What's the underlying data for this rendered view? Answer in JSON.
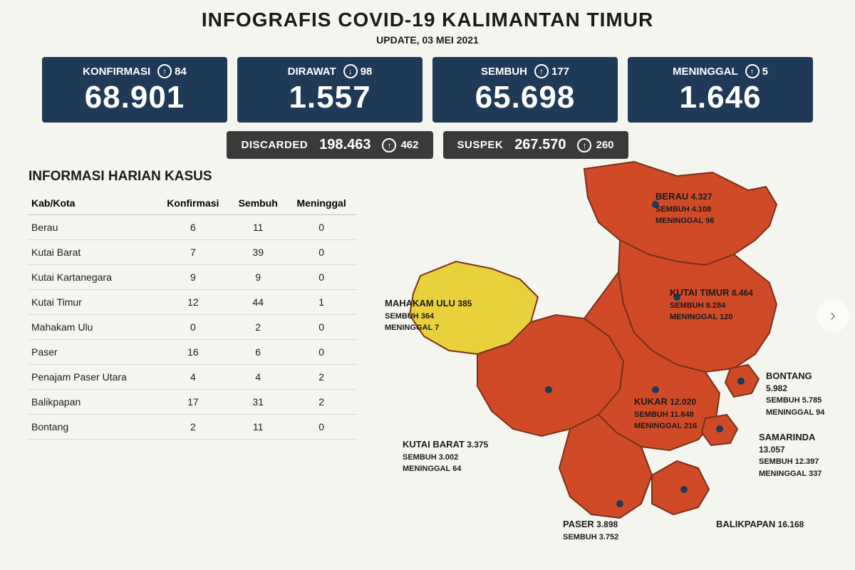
{
  "header": {
    "title": "INFOGRAFIS COVID-19 KALIMANTAN TIMUR",
    "subtitle": "UPDATE, 03 MEI 2021"
  },
  "stats": [
    {
      "label": "KONFIRMASI",
      "delta": "84",
      "dir": "up",
      "value": "68.901"
    },
    {
      "label": "DIRAWAT",
      "delta": "98",
      "dir": "down",
      "value": "1.557"
    },
    {
      "label": "SEMBUH",
      "delta": "177",
      "dir": "up",
      "value": "65.698"
    },
    {
      "label": "MENINGGAL",
      "delta": "5",
      "dir": "up",
      "value": "1.646"
    }
  ],
  "substats": [
    {
      "label": "DISCARDED",
      "value": "198.463",
      "delta": "462",
      "dir": "up"
    },
    {
      "label": "SUSPEK",
      "value": "267.570",
      "delta": "260",
      "dir": "up"
    }
  ],
  "table": {
    "title": "INFORMASI HARIAN KASUS",
    "columns": [
      "Kab/Kota",
      "Konfirmasi",
      "Sembuh",
      "Meninggal"
    ],
    "rows": [
      [
        "Berau",
        "6",
        "11",
        "0"
      ],
      [
        "Kutai Barat",
        "7",
        "39",
        "0"
      ],
      [
        "Kutai Kartanegara",
        "9",
        "9",
        "0"
      ],
      [
        "Kutai Timur",
        "12",
        "44",
        "1"
      ],
      [
        "Mahakam Ulu",
        "0",
        "2",
        "0"
      ],
      [
        "Paser",
        "16",
        "6",
        "0"
      ],
      [
        "Penajam Paser Utara",
        "4",
        "4",
        "2"
      ],
      [
        "Balikpapan",
        "17",
        "31",
        "2"
      ],
      [
        "Bontang",
        "2",
        "11",
        "0"
      ]
    ]
  },
  "map": {
    "colors": {
      "red": "#d04a28",
      "yellow": "#e8d13a",
      "border": "#7a3018",
      "dot": "#1e3a56"
    },
    "regions": [
      {
        "name": "BERAU",
        "value": "4.327",
        "sembuh": "SEMBUH 4.108",
        "meninggal": "MENINGGAL 96"
      },
      {
        "name": "KUTAI TIMUR",
        "value": "8.464",
        "sembuh": "SEMBUH 8.284",
        "meninggal": "MENINGGAL 120"
      },
      {
        "name": "MAHAKAM ULU",
        "value": "385",
        "sembuh": "SEMBUH 364",
        "meninggal": "MENINGGAL 7"
      },
      {
        "name": "BONTANG",
        "value": "5.982",
        "sembuh": "SEMBUH 5.785",
        "meninggal": "MENINGGAL 94"
      },
      {
        "name": "KUKAR",
        "value": "12.020",
        "sembuh": "SEMBUH 11.648",
        "meninggal": "MENINGGAL 216"
      },
      {
        "name": "KUTAI BARAT",
        "value": "3.375",
        "sembuh": "SEMBUH 3.002",
        "meninggal": "MENINGGAL 64"
      },
      {
        "name": "SAMARINDA",
        "value": "13.057",
        "sembuh": "SEMBUH 12.397",
        "meninggal": "MENINGGAL 337"
      },
      {
        "name": "PASER",
        "value": "3.898",
        "sembuh": "SEMBUH 3.752",
        "meninggal": ""
      },
      {
        "name": "BALIKPAPAN",
        "value": "16.168",
        "sembuh": "",
        "meninggal": ""
      }
    ]
  },
  "nav": {
    "next": "›"
  }
}
